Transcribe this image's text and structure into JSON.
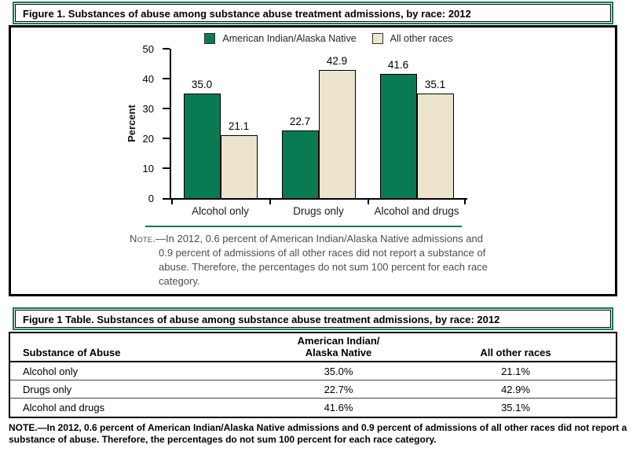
{
  "figure": {
    "title": "Figure 1. Substances of abuse among substance abuse treatment admissions, by race: 2012",
    "note_prefix": "Note.",
    "note_body": "—In 2012, 0.6 percent of American Indian/Alaska Native admissions and 0.9 percent of admissions of all other races did not report a substance of abuse. Therefore, the percentages do not sum 100 percent for each race category."
  },
  "chart_data": {
    "type": "bar",
    "categories": [
      "Alcohol only",
      "Drugs only",
      "Alcohol and drugs"
    ],
    "series": [
      {
        "name": "American Indian/Alaska Native",
        "color": "#0a7a52",
        "values": [
          35.0,
          22.7,
          41.6
        ]
      },
      {
        "name": "All other races",
        "color": "#ece4cd",
        "values": [
          21.1,
          42.9,
          35.1
        ]
      }
    ],
    "ylabel": "Percent",
    "ylim": [
      0,
      50
    ],
    "yticks": [
      0,
      10,
      20,
      30,
      40,
      50
    ],
    "value_labels": true,
    "legend_position": "top",
    "grid": false
  },
  "table": {
    "title": "Figure 1 Table. Substances of abuse among substance abuse treatment admissions, by race: 2012",
    "columns": [
      "Substance of Abuse",
      "American Indian/\nAlaska Native",
      "All other races"
    ],
    "rows": [
      [
        "Alcohol only",
        "35.0%",
        "21.1%"
      ],
      [
        "Drugs only",
        "22.7%",
        "42.9%"
      ],
      [
        "Alcohol and drugs",
        "41.6%",
        "35.1%"
      ]
    ],
    "note": "NOTE.—In 2012, 0.6 percent of American Indian/Alaska Native admissions and 0.9 percent of admissions of all other races did not report a substance of abuse. Therefore, the percentages do not sum 100 percent for each race category."
  },
  "colors": {
    "green": "#0a7a52",
    "cream": "#ece4cd",
    "note_gray": "#4d4d4d"
  }
}
